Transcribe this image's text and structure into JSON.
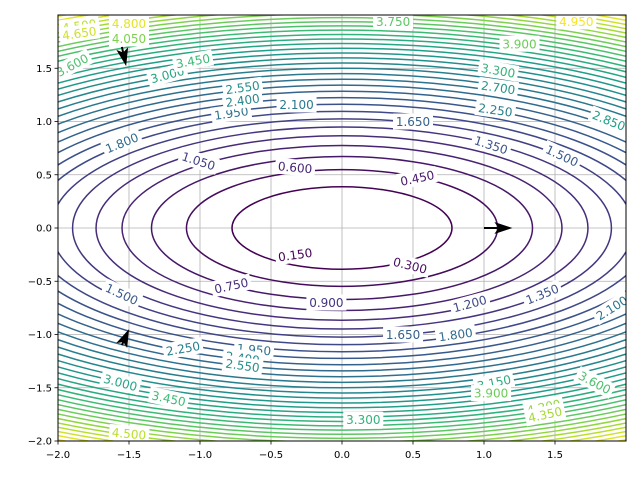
{
  "chart_data": {
    "type": "contour",
    "title": "",
    "xlabel": "",
    "ylabel": "",
    "function": "z = x^2/4 + y^2",
    "xlim": [
      -2.0,
      2.0
    ],
    "ylim": [
      -2.0,
      2.0
    ],
    "x_ticks": [
      -2.0,
      -1.5,
      -1.0,
      -0.5,
      0.0,
      0.5,
      1.0,
      1.5
    ],
    "x_tick_labels": [
      "−2.0",
      "−1.5",
      "−1.0",
      "−0.5",
      "0.0",
      "0.5",
      "1.0",
      "1.5"
    ],
    "y_ticks": [
      -2.0,
      -1.5,
      -1.0,
      -0.5,
      0.0,
      0.5,
      1.0,
      1.5
    ],
    "y_tick_labels": [
      "−2.0",
      "−1.5",
      "−1.0",
      "−0.5",
      "0.0",
      "0.5",
      "1.0",
      "1.5"
    ],
    "grid": true,
    "colormap": "viridis",
    "level_min": 0.15,
    "level_max": 5.0,
    "levels": [
      0.15,
      0.3,
      0.45,
      0.6,
      0.75,
      0.9,
      1.05,
      1.2,
      1.35,
      1.5,
      1.65,
      1.8,
      1.95,
      2.1,
      2.25,
      2.4,
      2.55,
      2.7,
      2.85,
      3.0,
      3.15,
      3.3,
      3.45,
      3.6,
      3.75,
      3.9,
      4.05,
      4.2,
      4.35,
      4.5,
      4.65,
      4.8,
      4.95
    ],
    "contour_labels": [
      {
        "text": "0.150",
        "x": -0.33,
        "y": -0.25,
        "level": 0.15,
        "angle": 8
      },
      {
        "text": "0.300",
        "x": 0.48,
        "y": -0.35,
        "level": 0.3,
        "angle": -14
      },
      {
        "text": "0.450",
        "x": 0.53,
        "y": 0.47,
        "level": 0.45,
        "angle": 12
      },
      {
        "text": "0.600",
        "x": -0.33,
        "y": 0.57,
        "level": 0.6,
        "angle": -5
      },
      {
        "text": "0.750",
        "x": -0.78,
        "y": -0.54,
        "level": 0.75,
        "angle": 12
      },
      {
        "text": "0.900",
        "x": -0.11,
        "y": -0.7,
        "level": 0.9,
        "angle": 0
      },
      {
        "text": "1.050",
        "x": -1.01,
        "y": 0.63,
        "level": 1.05,
        "angle": -18
      },
      {
        "text": "1.200",
        "x": 0.9,
        "y": -0.71,
        "level": 1.2,
        "angle": 15
      },
      {
        "text": "1.350",
        "x": 1.05,
        "y": 0.78,
        "level": 1.35,
        "angle": -18
      },
      {
        "text": "1.350",
        "x": 1.41,
        "y": -0.62,
        "level": 1.35,
        "angle": 22
      },
      {
        "text": "1.500",
        "x": -1.55,
        "y": -0.62,
        "level": 1.5,
        "angle": -25
      },
      {
        "text": "1.500",
        "x": 1.55,
        "y": 0.68,
        "level": 1.5,
        "angle": -25
      },
      {
        "text": "1.650",
        "x": 0.5,
        "y": 1.0,
        "level": 1.65,
        "angle": 0
      },
      {
        "text": "1.650",
        "x": 0.43,
        "y": -1.0,
        "level": 1.65,
        "angle": 0
      },
      {
        "text": "1.800",
        "x": -1.55,
        "y": 0.8,
        "level": 1.8,
        "angle": 22
      },
      {
        "text": "1.800",
        "x": 0.8,
        "y": -1.0,
        "level": 1.8,
        "angle": 8
      },
      {
        "text": "1.950",
        "x": -0.78,
        "y": 1.08,
        "level": 1.95,
        "angle": 8
      },
      {
        "text": "1.950",
        "x": -0.62,
        "y": -1.14,
        "level": 1.95,
        "angle": -5
      },
      {
        "text": "2.100",
        "x": -0.32,
        "y": 1.16,
        "level": 2.1,
        "angle": 0
      },
      {
        "text": "2.100",
        "x": 1.9,
        "y": -0.75,
        "level": 2.1,
        "angle": 32
      },
      {
        "text": "2.250",
        "x": 1.08,
        "y": 1.11,
        "level": 2.25,
        "angle": -8
      },
      {
        "text": "2.250",
        "x": -1.12,
        "y": -1.13,
        "level": 2.25,
        "angle": 10
      },
      {
        "text": "2.400",
        "x": -0.7,
        "y": 1.2,
        "level": 2.4,
        "angle": 8
      },
      {
        "text": "2.400",
        "x": -0.7,
        "y": -1.22,
        "level": 2.4,
        "angle": -8
      },
      {
        "text": "2.550",
        "x": -0.7,
        "y": 1.32,
        "level": 2.55,
        "angle": 8
      },
      {
        "text": "2.550",
        "x": -0.7,
        "y": -1.29,
        "level": 2.55,
        "angle": -8
      },
      {
        "text": "2.700",
        "x": 1.1,
        "y": 1.32,
        "level": 2.7,
        "angle": -8
      },
      {
        "text": "2.850",
        "x": 1.88,
        "y": 1.01,
        "level": 2.85,
        "angle": -22
      },
      {
        "text": "3.000",
        "x": -1.23,
        "y": 1.44,
        "level": 3.0,
        "angle": 15
      },
      {
        "text": "3.000",
        "x": -1.56,
        "y": -1.45,
        "level": 3.0,
        "angle": -15
      },
      {
        "text": "3.150",
        "x": 1.07,
        "y": -1.45,
        "level": 3.15,
        "angle": 12
      },
      {
        "text": "3.300",
        "x": 1.1,
        "y": 1.48,
        "level": 3.3,
        "angle": -10
      },
      {
        "text": "3.300",
        "x": 0.15,
        "y": -1.8,
        "level": 3.3,
        "angle": 0
      },
      {
        "text": "3.450",
        "x": -1.05,
        "y": 1.57,
        "level": 3.45,
        "angle": 10
      },
      {
        "text": "3.450",
        "x": -1.22,
        "y": -1.6,
        "level": 3.45,
        "angle": -12
      },
      {
        "text": "3.600",
        "x": -1.9,
        "y": 1.53,
        "level": 3.6,
        "angle": 28
      },
      {
        "text": "3.600",
        "x": 1.78,
        "y": -1.45,
        "level": 3.6,
        "angle": -28
      },
      {
        "text": "3.750",
        "x": 0.36,
        "y": 1.94,
        "level": 3.75,
        "angle": 0
      },
      {
        "text": "3.900",
        "x": 1.25,
        "y": 1.73,
        "level": 3.9,
        "angle": 0
      },
      {
        "text": "3.900",
        "x": 1.05,
        "y": -1.55,
        "level": 3.9,
        "angle": 0
      },
      {
        "text": "4.050",
        "x": -1.5,
        "y": 1.78,
        "level": 4.05,
        "angle": 0
      },
      {
        "text": "4.200",
        "x": 1.42,
        "y": -1.68,
        "level": 4.2,
        "angle": 12
      },
      {
        "text": "4.350",
        "x": 1.43,
        "y": -1.75,
        "level": 4.35,
        "angle": 12
      },
      {
        "text": "4.500",
        "x": -1.85,
        "y": 1.9,
        "level": 4.5,
        "angle": 8
      },
      {
        "text": "4.500",
        "x": -1.5,
        "y": -1.93,
        "level": 4.5,
        "angle": -5
      },
      {
        "text": "4.650",
        "x": -1.85,
        "y": 1.83,
        "level": 4.65,
        "angle": 8
      },
      {
        "text": "4.800",
        "x": -1.5,
        "y": 1.92,
        "level": 4.8,
        "angle": 0
      },
      {
        "text": "4.950",
        "x": 1.65,
        "y": 1.94,
        "level": 4.95,
        "angle": 0
      }
    ],
    "arrows": [
      {
        "x": 1.0,
        "y": 0.0,
        "dx": 0.2,
        "dy": 0.0
      },
      {
        "x": -1.55,
        "y": 1.7,
        "dx": 0.03,
        "dy": -0.18
      },
      {
        "x": -1.55,
        "y": -1.1,
        "dx": 0.05,
        "dy": 0.15
      }
    ]
  }
}
